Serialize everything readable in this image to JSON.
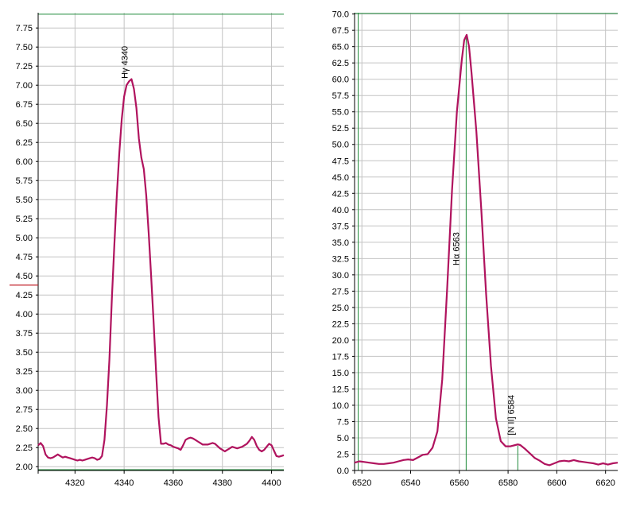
{
  "chart_data": [
    {
      "type": "line",
      "title": "",
      "xlabel": "",
      "ylabel": "",
      "grid": true,
      "xlim": [
        4305,
        4405
      ],
      "ylim": [
        1.95,
        7.95
      ],
      "xticks": [
        4320,
        4340,
        4360,
        4380,
        4400
      ],
      "yticks": [
        2.0,
        2.25,
        2.5,
        2.75,
        3.0,
        3.25,
        3.5,
        3.75,
        4.0,
        4.25,
        4.5,
        4.75,
        5.0,
        5.25,
        5.5,
        5.75,
        6.0,
        6.25,
        6.5,
        6.75,
        7.0,
        7.25,
        7.5,
        7.75
      ],
      "ytick_labels": [
        "2.00",
        "2.25",
        "2.50",
        "2.75",
        "3.00",
        "3.25",
        "3.50",
        "3.75",
        "4.00",
        "4.25",
        "4.50",
        "4.75",
        "5.00",
        "5.25",
        "5.50",
        "5.75",
        "6.00",
        "6.25",
        "6.50",
        "6.75",
        "7.00",
        "7.25",
        "7.50",
        "7.75"
      ],
      "hlines": [
        {
          "y": 1.96,
          "color": "#1f8a3a"
        },
        {
          "y": 7.93,
          "color": "#1f8a3a"
        }
      ],
      "red_mark_y": 4.38,
      "annotations": [
        {
          "text": "Hγ 4340",
          "x": 4343,
          "y": 7.3
        }
      ],
      "series": [
        {
          "color": "#b0135e",
          "x": [
            4305,
            4306,
            4307,
            4308,
            4309,
            4310,
            4311,
            4312,
            4313,
            4314,
            4315,
            4316,
            4317,
            4318,
            4319,
            4320,
            4321,
            4322,
            4323,
            4324,
            4325,
            4326,
            4327,
            4328,
            4329,
            4330,
            4331,
            4332,
            4333,
            4334,
            4335,
            4336,
            4337,
            4338,
            4339,
            4340,
            4341,
            4342,
            4343,
            4344,
            4345,
            4346,
            4347,
            4348,
            4349,
            4350,
            4351,
            4352,
            4353,
            4354,
            4355,
            4356,
            4357,
            4358,
            4359,
            4360,
            4361,
            4362,
            4363,
            4364,
            4365,
            4366,
            4367,
            4368,
            4369,
            4370,
            4371,
            4372,
            4373,
            4374,
            4375,
            4376,
            4377,
            4378,
            4379,
            4380,
            4381,
            4382,
            4383,
            4384,
            4385,
            4386,
            4387,
            4388,
            4389,
            4390,
            4391,
            4392,
            4393,
            4394,
            4395,
            4396,
            4397,
            4398,
            4399,
            4400,
            4401,
            4402,
            4403,
            4404,
            4405
          ],
          "y": [
            2.28,
            2.31,
            2.27,
            2.16,
            2.12,
            2.11,
            2.12,
            2.14,
            2.16,
            2.14,
            2.12,
            2.13,
            2.12,
            2.11,
            2.1,
            2.09,
            2.08,
            2.09,
            2.08,
            2.09,
            2.1,
            2.11,
            2.12,
            2.11,
            2.09,
            2.1,
            2.14,
            2.35,
            2.8,
            3.4,
            4.2,
            4.9,
            5.55,
            6.1,
            6.55,
            6.85,
            7.0,
            7.05,
            7.08,
            6.95,
            6.7,
            6.3,
            6.05,
            5.9,
            5.55,
            5.05,
            4.5,
            3.9,
            3.25,
            2.65,
            2.3,
            2.3,
            2.31,
            2.29,
            2.28,
            2.26,
            2.25,
            2.24,
            2.22,
            2.28,
            2.35,
            2.37,
            2.38,
            2.37,
            2.35,
            2.33,
            2.31,
            2.29,
            2.29,
            2.29,
            2.3,
            2.31,
            2.3,
            2.27,
            2.24,
            2.22,
            2.2,
            2.22,
            2.24,
            2.26,
            2.25,
            2.24,
            2.25,
            2.26,
            2.28,
            2.3,
            2.34,
            2.39,
            2.35,
            2.27,
            2.22,
            2.2,
            2.22,
            2.26,
            2.3,
            2.28,
            2.21,
            2.14,
            2.13,
            2.14,
            2.15
          ]
        }
      ]
    },
    {
      "type": "line",
      "title": "",
      "xlabel": "",
      "ylabel": "",
      "grid": true,
      "xlim": [
        6517,
        6625
      ],
      "ylim": [
        0,
        70.2
      ],
      "xticks": [
        6520,
        6540,
        6560,
        6580,
        6600,
        6620
      ],
      "yticks": [
        0.0,
        2.5,
        5.0,
        7.5,
        10.0,
        12.5,
        15.0,
        17.5,
        20.0,
        22.5,
        25.0,
        27.5,
        30.0,
        32.5,
        35.0,
        37.5,
        40.0,
        42.5,
        45.0,
        47.5,
        50.0,
        52.5,
        55.0,
        57.5,
        60.0,
        62.5,
        65.0,
        67.5,
        70.0
      ],
      "ytick_labels": [
        "0.0",
        "2.5",
        "5.0",
        "7.5",
        "10.0",
        "12.5",
        "15.0",
        "17.5",
        "20.0",
        "22.5",
        "25.0",
        "27.5",
        "30.0",
        "32.5",
        "35.0",
        "37.5",
        "40.0",
        "42.5",
        "45.0",
        "47.5",
        "50.0",
        "52.5",
        "55.0",
        "57.5",
        "60.0",
        "62.5",
        "65.0",
        "67.5",
        "70.0"
      ],
      "hlines": [
        {
          "y": 70.1,
          "color": "#1f8a3a"
        }
      ],
      "vlines": [
        {
          "x": 6518.5,
          "color": "#1f8a3a"
        },
        {
          "x": 6562.8,
          "y0": 0,
          "y1": 66.5,
          "color": "#1f8a3a"
        },
        {
          "x": 6584.0,
          "y0": 0,
          "y1": 3.8,
          "color": "#1f8a3a"
        }
      ],
      "annotations": [
        {
          "text": "Hα 6563",
          "x": 6561.5,
          "y": 34.0
        },
        {
          "text": "[N II] 6584",
          "x": 6584.0,
          "y": 8.5
        }
      ],
      "series": [
        {
          "color": "#b0135e",
          "x": [
            6517,
            6519,
            6521,
            6523,
            6525,
            6527,
            6529,
            6531,
            6533,
            6535,
            6537,
            6539,
            6541,
            6543,
            6545,
            6547,
            6549,
            6551,
            6553,
            6555,
            6557,
            6559,
            6561,
            6562,
            6563,
            6564,
            6565,
            6567,
            6569,
            6571,
            6573,
            6575,
            6577,
            6579,
            6581,
            6583,
            6584,
            6585,
            6587,
            6589,
            6591,
            6593,
            6595,
            6597,
            6599,
            6601,
            6603,
            6605,
            6607,
            6609,
            6611,
            6613,
            6615,
            6617,
            6619,
            6621,
            6623,
            6625
          ],
          "y": [
            1.2,
            1.4,
            1.3,
            1.2,
            1.1,
            1.0,
            1.0,
            1.1,
            1.2,
            1.4,
            1.6,
            1.7,
            1.6,
            2.0,
            2.4,
            2.5,
            3.5,
            6.0,
            14.0,
            28.0,
            43.0,
            55.0,
            63.0,
            66.0,
            66.8,
            65.0,
            61.0,
            52.0,
            40.0,
            27.0,
            16.0,
            8.0,
            4.5,
            3.7,
            3.7,
            3.9,
            4.0,
            3.9,
            3.3,
            2.6,
            1.9,
            1.5,
            1.0,
            0.8,
            1.1,
            1.4,
            1.5,
            1.4,
            1.6,
            1.4,
            1.3,
            1.2,
            1.1,
            0.9,
            1.1,
            0.9,
            1.1,
            1.2
          ]
        }
      ]
    }
  ]
}
